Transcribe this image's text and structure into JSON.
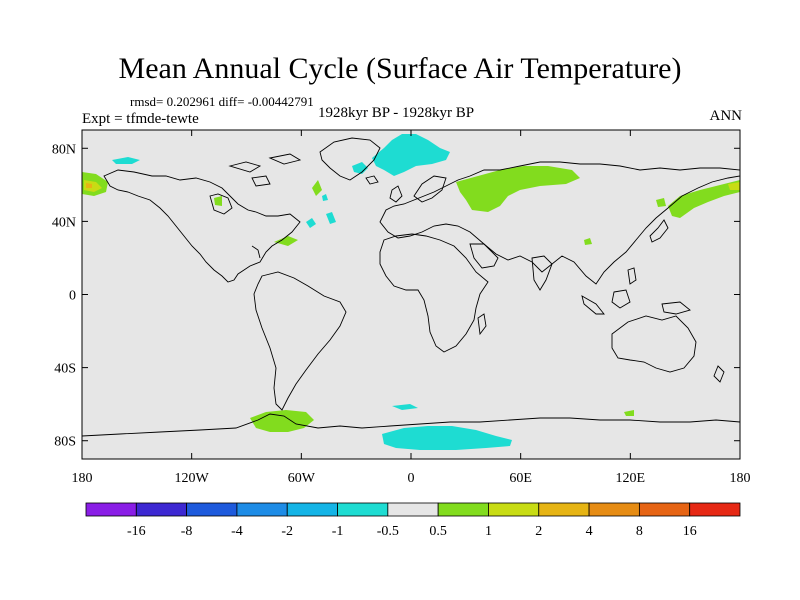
{
  "title": "Mean Annual Cycle (Surface Air Temperature)",
  "stats": {
    "rmsd_label": "rmsd=",
    "rmsd": "0.202961",
    "diff_label": "diff=",
    "diff": "-0.00442791"
  },
  "experiment": "Expt = tfmde-tewte",
  "subtitle": "1928kyr BP - 1928kyr BP",
  "season": "ANN",
  "axes": {
    "x_ticks": [
      "180",
      "120W",
      "60W",
      "0",
      "60E",
      "120E",
      "180"
    ],
    "y_ticks": [
      "80N",
      "40N",
      "0",
      "40S",
      "80S"
    ]
  },
  "colorbar": {
    "labels": [
      "-16",
      "-8",
      "-4",
      "-2",
      "-1",
      "-0.5",
      "0.5",
      "1",
      "2",
      "4",
      "8",
      "16"
    ],
    "colors": [
      "#8a1ee6",
      "#3d28d2",
      "#1e5adc",
      "#1e8ce6",
      "#14b4e6",
      "#1edcd2",
      "#e6e6e6",
      "#82dc1e",
      "#c8dc14",
      "#e6b414",
      "#e68c14",
      "#e66414",
      "#e62814"
    ]
  },
  "map_colors": {
    "background": "#e6e6e6",
    "coast": "#000000"
  },
  "anomalies": [
    {
      "name": "greenland-sea-cooling",
      "category": "-1 to -0.5"
    },
    {
      "name": "siberia-warming",
      "category": "0.5 to 1"
    },
    {
      "name": "antarctic-coast-cooling",
      "category": "-1 to -0.5"
    },
    {
      "name": "antarctic-peninsula-warming",
      "category": "0.5 to 1"
    },
    {
      "name": "alaska-warming",
      "category": "1 to 2"
    }
  ]
}
